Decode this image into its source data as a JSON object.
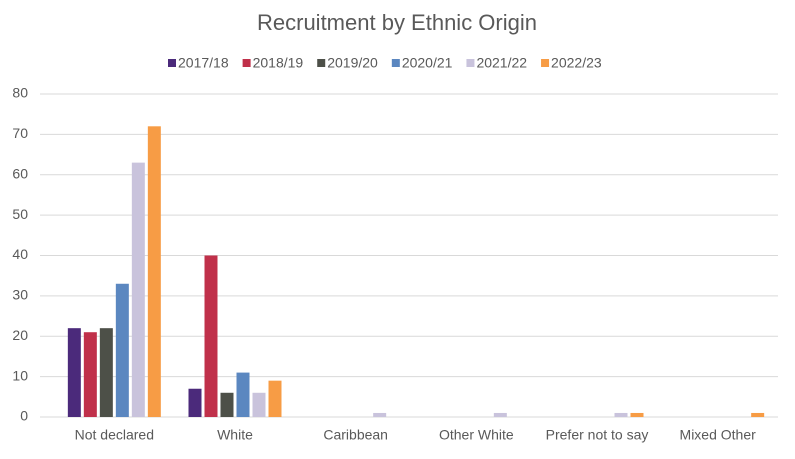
{
  "chart_data": {
    "type": "bar",
    "title": "Recruitment by Ethnic Origin",
    "categories": [
      "Not declared",
      "White",
      "Caribbean",
      "Other White",
      "Prefer not to say",
      "Mixed Other"
    ],
    "series": [
      {
        "name": "2017/18",
        "color": "#4b2a7b",
        "values": [
          22,
          7,
          0,
          0,
          0,
          0
        ]
      },
      {
        "name": "2018/19",
        "color": "#c0304a",
        "values": [
          21,
          40,
          0,
          0,
          0,
          0
        ]
      },
      {
        "name": "2019/20",
        "color": "#4d5048",
        "values": [
          22,
          6,
          0,
          0,
          0,
          0
        ]
      },
      {
        "name": "2020/21",
        "color": "#5b87c0",
        "values": [
          33,
          11,
          0,
          0,
          0,
          0
        ]
      },
      {
        "name": "2021/22",
        "color": "#c9c3dc",
        "values": [
          63,
          6,
          1,
          1,
          1,
          0
        ]
      },
      {
        "name": "2022/23",
        "color": "#f79c45",
        "values": [
          72,
          9,
          0,
          0,
          1,
          1
        ]
      }
    ],
    "ylim": [
      0,
      80
    ],
    "yticks": [
      0,
      10,
      20,
      30,
      40,
      50,
      60,
      70,
      80
    ],
    "grid": true,
    "legend": "top"
  }
}
